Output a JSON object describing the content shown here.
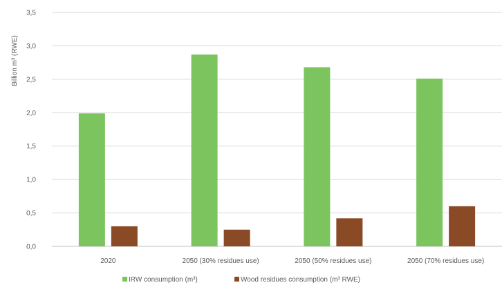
{
  "chart_data": {
    "type": "bar",
    "title": "",
    "xlabel": "",
    "ylabel": "Billion m³ (RWE)",
    "ylim": [
      0,
      3.5
    ],
    "yticks": [
      "0,0",
      "0,5",
      "1,0",
      "1,5",
      "2,0",
      "2,5",
      "3,0",
      "3,5"
    ],
    "categories": [
      "2020",
      "2050 (30% residues use)",
      "2050 (50% residues use)",
      "2050 (70% residues use)"
    ],
    "grid": true,
    "legend_position": "bottom",
    "series": [
      {
        "name": "IRW consumption (m³)",
        "color": "#7cc55e",
        "values": [
          1.99,
          2.87,
          2.68,
          2.51
        ]
      },
      {
        "name": "Wood residues consumption (m³ RWE)",
        "color": "#8b4a26",
        "values": [
          0.3,
          0.25,
          0.42,
          0.6
        ]
      }
    ]
  }
}
